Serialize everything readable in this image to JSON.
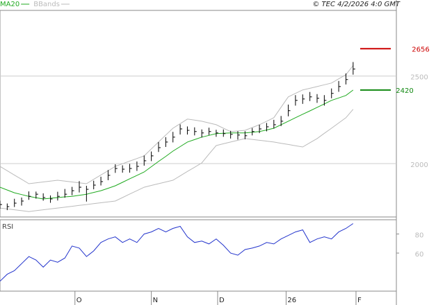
{
  "chart_data": [
    {
      "type": "ohlc",
      "source": "© TEC 4/2/2026 4:0 GMT",
      "xlim": [
        0,
        55
      ],
      "ylim": [
        1695,
        2875
      ],
      "yticks": [
        2000,
        2500
      ],
      "grid": true,
      "price": {
        "color": "#000000",
        "high": [
          1788,
          1772,
          1799,
          1806,
          1841,
          1840,
          1830,
          1818,
          1839,
          1855,
          1867,
          1900,
          1873,
          1902,
          1925,
          1963,
          1996,
          1990,
          1998,
          2012,
          2046,
          2069,
          2123,
          2151,
          2181,
          2224,
          2212,
          2207,
          2195,
          2205,
          2193,
          2195,
          2187,
          2185,
          2185,
          2203,
          2222,
          2232,
          2250,
          2272,
          2337,
          2391,
          2395,
          2409,
          2397,
          2391,
          2429,
          2472,
          2515,
          2580
        ],
        "low": [
          1742,
          1734,
          1752,
          1760,
          1793,
          1800,
          1788,
          1776,
          1789,
          1805,
          1819,
          1835,
          1783,
          1853,
          1875,
          1905,
          1947,
          1948,
          1948,
          1958,
          1988,
          2014,
          2066,
          2095,
          2121,
          2166,
          2166,
          2161,
          2149,
          2163,
          2153,
          2153,
          2143,
          2137,
          2139,
          2161,
          2174,
          2184,
          2200,
          2214,
          2270,
          2331,
          2341,
          2357,
          2347,
          2331,
          2373,
          2410,
          2452,
          2508
        ],
        "close": [
          1766,
          1754,
          1774,
          1786,
          1813,
          1825,
          1806,
          1798,
          1813,
          1825,
          1845,
          1865,
          1853,
          1877,
          1897,
          1933,
          1972,
          1968,
          1972,
          1984,
          2016,
          2044,
          2091,
          2123,
          2151,
          2198,
          2190,
          2183,
          2175,
          2183,
          2175,
          2171,
          2167,
          2163,
          2159,
          2183,
          2198,
          2210,
          2222,
          2242,
          2302,
          2361,
          2369,
          2381,
          2373,
          2361,
          2401,
          2440,
          2480,
          2540
        ]
      },
      "series": [
        {
          "name": "MA20",
          "color": "#1faa1f",
          "values": [
            1865,
            1849,
            1833,
            1823,
            1813,
            1805,
            1798,
            1802,
            1806,
            1810,
            1813,
            1819,
            1825,
            1835,
            1845,
            1859,
            1873,
            1893,
            1913,
            1932,
            1952,
            1982,
            2012,
            2041,
            2071,
            2097,
            2123,
            2137,
            2151,
            2161,
            2171,
            2173,
            2175,
            2175,
            2175,
            2179,
            2183,
            2192,
            2202,
            2222,
            2242,
            2262,
            2282,
            2301,
            2321,
            2341,
            2361,
            2375,
            2389,
            2420
          ]
        },
        {
          "name": "BBands",
          "color": "#bbbbbb",
          "upper": [
            1984,
            1959,
            1934,
            1910,
            1885,
            1890,
            1895,
            1900,
            1905,
            1900,
            1895,
            1890,
            1885,
            1910,
            1935,
            1959,
            1984,
            1999,
            2014,
            2029,
            2044,
            2084,
            2123,
            2163,
            2202,
            2228,
            2254,
            2248,
            2242,
            2232,
            2222,
            2202,
            2183,
            2186,
            2190,
            2206,
            2222,
            2242,
            2262,
            2322,
            2381,
            2401,
            2421,
            2430,
            2440,
            2450,
            2460,
            2484,
            2508,
            2560
          ],
          "lower": [
            1746,
            1741,
            1736,
            1731,
            1726,
            1731,
            1736,
            1741,
            1746,
            1751,
            1756,
            1761,
            1766,
            1771,
            1776,
            1781,
            1786,
            1806,
            1826,
            1845,
            1865,
            1875,
            1885,
            1895,
            1905,
            1930,
            1955,
            1979,
            2004,
            2054,
            2103,
            2113,
            2123,
            2133,
            2143,
            2138,
            2133,
            2128,
            2123,
            2116,
            2109,
            2102,
            2095,
            2119,
            2143,
            2173,
            2202,
            2232,
            2262,
            2310
          ]
        }
      ],
      "levels": [
        {
          "value": 2656,
          "color": "#cc0000"
        },
        {
          "value": 2420,
          "color": "#118811"
        }
      ]
    },
    {
      "type": "line",
      "title": "RSI",
      "xlim": [
        0,
        55
      ],
      "ylim": [
        20,
        95
      ],
      "yticks": [
        60,
        80
      ],
      "xticks": [
        {
          "value": 10.4,
          "label": "O"
        },
        {
          "value": 21,
          "label": "N"
        },
        {
          "value": 30.2,
          "label": "D"
        },
        {
          "value": 39.7,
          "label": "26"
        },
        {
          "value": 49.4,
          "label": "F"
        }
      ],
      "series": [
        {
          "name": "RSI",
          "color": "#2233cc",
          "values": [
            30.4,
            37.8,
            41.5,
            48.9,
            56.3,
            52.6,
            45.2,
            52.6,
            50.4,
            54.8,
            67.4,
            65.2,
            56.3,
            62.2,
            71.1,
            74.8,
            77,
            71.1,
            74.8,
            71.1,
            80,
            82.2,
            85.9,
            82.2,
            85.9,
            88.1,
            77,
            71.1,
            72.6,
            69.6,
            74.8,
            68.1,
            60,
            57.8,
            63.7,
            65.2,
            67.4,
            71.1,
            69.6,
            74.8,
            78.5,
            82.2,
            84.4,
            71.1,
            74.8,
            77,
            74.8,
            82.2,
            85.9,
            91
          ]
        }
      ]
    }
  ]
}
